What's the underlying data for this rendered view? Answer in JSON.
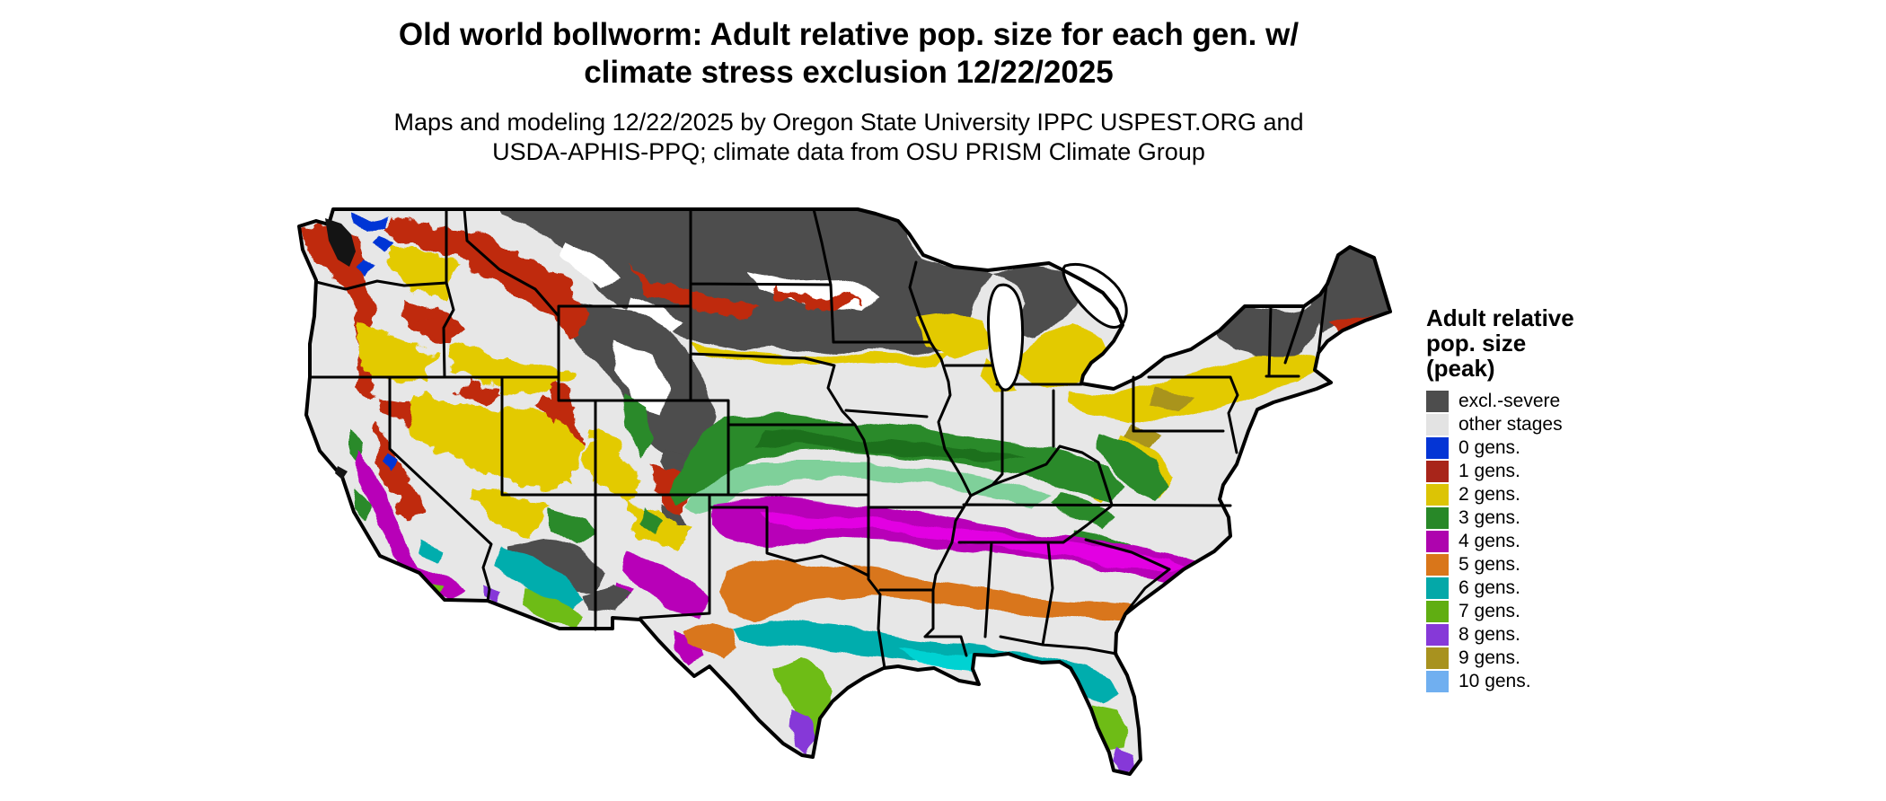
{
  "title": {
    "line1": "Old world bollworm: Adult relative pop. size for each gen. w/",
    "line2": "climate stress exclusion 12/22/2025"
  },
  "subtitle": {
    "line1": "Maps and modeling 12/22/2025 by Oregon State University IPPC USPEST.ORG and",
    "line2": "USDA-APHIS-PPQ; climate data from OSU PRISM Climate Group"
  },
  "legend": {
    "title_line1": "Adult relative",
    "title_line2": "pop. size",
    "title_line3": "(peak)",
    "items": [
      {
        "key": "excl",
        "label": "excl.-severe",
        "color": "#4d4d4d"
      },
      {
        "key": "other",
        "label": "other stages",
        "color": "#e3e3e3"
      },
      {
        "key": "g0",
        "label": "0 gens.",
        "color": "#0435d5"
      },
      {
        "key": "g1",
        "label": "1 gens.",
        "color": "#a8251a"
      },
      {
        "key": "g2",
        "label": "2 gens.",
        "color": "#dcc405"
      },
      {
        "key": "g3",
        "label": "3 gens.",
        "color": "#288828"
      },
      {
        "key": "g4",
        "label": "4 gens.",
        "color": "#ae04ae"
      },
      {
        "key": "g5",
        "label": "5 gens.",
        "color": "#d9761a"
      },
      {
        "key": "g6",
        "label": "6 gens.",
        "color": "#04a8a8"
      },
      {
        "key": "g7",
        "label": "7 gens.",
        "color": "#60ae12"
      },
      {
        "key": "g8",
        "label": "8 gens.",
        "color": "#8639d8"
      },
      {
        "key": "g9",
        "label": "9 gens.",
        "color": "#a8921f"
      },
      {
        "key": "g10",
        "label": "10 gens.",
        "color": "#70aff0"
      }
    ]
  },
  "palette": {
    "base": "#e7e7e7",
    "excl": "#4d4d4d",
    "white": "#ffffff",
    "black_water": "#141414",
    "red": "#bf2a10",
    "red_dark": "#8f1f10",
    "yellow": "#e3ca06",
    "yellow_bright": "#f0dc00",
    "olive": "#a9941c",
    "green": "#2a8a2a",
    "green_dark": "#1d701d",
    "green_light": "#7fd09a",
    "magenta": "#b802b8",
    "magenta_bright": "#e204e2",
    "orange": "#d9761a",
    "cyan": "#06adad",
    "cyan_bright": "#00d2d2",
    "lime": "#6ebc14",
    "purple": "#8639d8",
    "blue": "#0435d5",
    "lightblue": "#70aff0",
    "border": "#000000"
  }
}
